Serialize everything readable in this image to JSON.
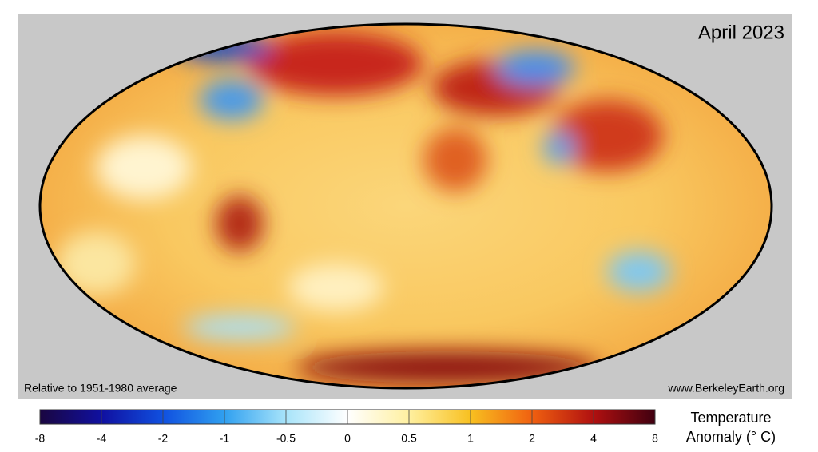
{
  "map": {
    "title": "April 2023",
    "note_left": "Relative to 1951-1980 average",
    "note_right": "www.BerkeleyEarth.org",
    "colorbar": {
      "ticks": [
        -8,
        -4,
        -2,
        -1,
        -0.5,
        0,
        0.5,
        1,
        2,
        4,
        8
      ],
      "label": [
        "Temperature",
        "Anomaly (° C)"
      ]
    }
  }
}
